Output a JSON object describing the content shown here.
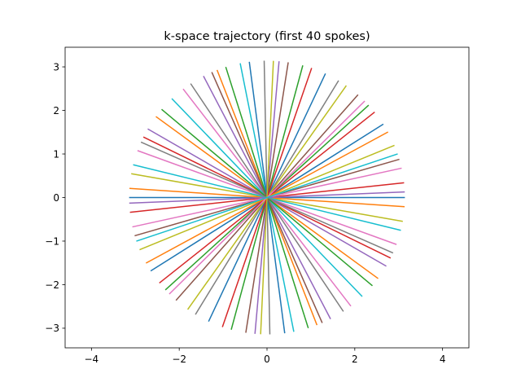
{
  "chart_data": {
    "type": "line",
    "title": "k-space trajectory (first 40 spokes)",
    "xlabel": "",
    "ylabel": "",
    "xlim": [
      -4.6,
      4.6
    ],
    "ylim": [
      -3.45,
      3.45
    ],
    "xticks": [
      -4,
      -2,
      0,
      2,
      4
    ],
    "yticks": [
      -3,
      -2,
      -1,
      0,
      1,
      2,
      3
    ],
    "xtick_labels": [
      "−4",
      "−2",
      "0",
      "2",
      "4"
    ],
    "ytick_labels": [
      "−3",
      "−2",
      "−1",
      "0",
      "1",
      "2",
      "3"
    ],
    "grid": false,
    "legend": "none",
    "spoke_radius": 3.14159,
    "spoke_count": 40,
    "golden_angle_deg": 111.246,
    "colors": [
      "#1f77b4",
      "#ff7f0e",
      "#2ca02c",
      "#d62728",
      "#9467bd",
      "#8c564b",
      "#e377c2",
      "#7f7f7f",
      "#bcbd22",
      "#17becf"
    ]
  }
}
